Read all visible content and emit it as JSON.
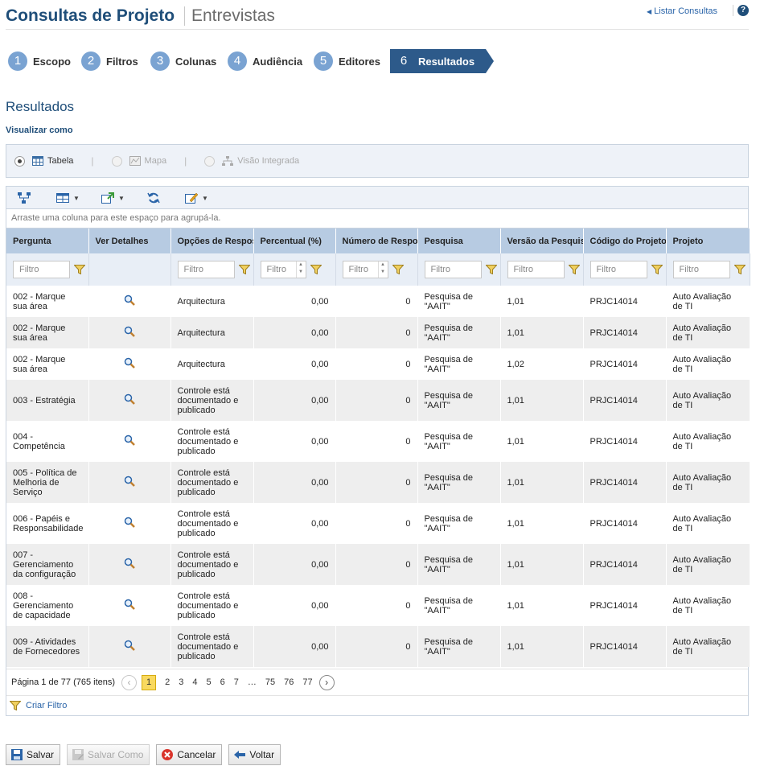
{
  "header": {
    "title": "Consultas de Projeto",
    "subtitle": "Entrevistas",
    "list_link": "Listar Consultas",
    "help": "?"
  },
  "wizard": {
    "steps": [
      {
        "num": "1",
        "label": "Escopo"
      },
      {
        "num": "2",
        "label": "Filtros"
      },
      {
        "num": "3",
        "label": "Colunas"
      },
      {
        "num": "4",
        "label": "Audiência"
      },
      {
        "num": "5",
        "label": "Editores"
      },
      {
        "num": "6",
        "label": "Resultados",
        "active": true
      }
    ]
  },
  "section_title": "Resultados",
  "view_as": {
    "label": "Visualizar como",
    "options": [
      "Tabela",
      "Mapa",
      "Visão Integrada"
    ],
    "selected": "Tabela"
  },
  "grid": {
    "group_hint": "Arraste uma coluna para este espaço para agrupá-la.",
    "columns": [
      "Pergunta",
      "Ver Detalhes",
      "Opções de Respostas",
      "Percentual (%)",
      "Número de Respostas",
      "Pesquisa",
      "Versão da Pesquisa",
      "Código do Projeto",
      "Projeto"
    ],
    "filter_placeholder": "Filtro",
    "rows": [
      {
        "pergunta": "002 - Marque sua área",
        "opcao": "Arquitectura",
        "percentual": "0,00",
        "numero": "0",
        "pesquisa": "Pesquisa de \"AAIT\"",
        "versao": "1,01",
        "codigo": "PRJC14014",
        "projeto": "Auto Avaliação de TI"
      },
      {
        "pergunta": "002 - Marque sua área",
        "opcao": "Arquitectura",
        "percentual": "0,00",
        "numero": "0",
        "pesquisa": "Pesquisa de \"AAIT\"",
        "versao": "1,01",
        "codigo": "PRJC14014",
        "projeto": "Auto Avaliação de TI"
      },
      {
        "pergunta": "002 - Marque sua área",
        "opcao": "Arquitectura",
        "percentual": "0,00",
        "numero": "0",
        "pesquisa": "Pesquisa de \"AAIT\"",
        "versao": "1,02",
        "codigo": "PRJC14014",
        "projeto": "Auto Avaliação de TI"
      },
      {
        "pergunta": "003 - Estratégia",
        "opcao": "Controle está documentado e publicado",
        "percentual": "0,00",
        "numero": "0",
        "pesquisa": "Pesquisa de \"AAIT\"",
        "versao": "1,01",
        "codigo": "PRJC14014",
        "projeto": "Auto Avaliação de TI"
      },
      {
        "pergunta": "004 - Competência",
        "opcao": "Controle está documentado e publicado",
        "percentual": "0,00",
        "numero": "0",
        "pesquisa": "Pesquisa de \"AAIT\"",
        "versao": "1,01",
        "codigo": "PRJC14014",
        "projeto": "Auto Avaliação de TI"
      },
      {
        "pergunta": "005 - Política de Melhoria de Serviço",
        "opcao": "Controle está documentado e publicado",
        "percentual": "0,00",
        "numero": "0",
        "pesquisa": "Pesquisa de \"AAIT\"",
        "versao": "1,01",
        "codigo": "PRJC14014",
        "projeto": "Auto Avaliação de TI"
      },
      {
        "pergunta": "006 - Papéis e Responsabilidade",
        "opcao": "Controle está documentado e publicado",
        "percentual": "0,00",
        "numero": "0",
        "pesquisa": "Pesquisa de \"AAIT\"",
        "versao": "1,01",
        "codigo": "PRJC14014",
        "projeto": "Auto Avaliação de TI"
      },
      {
        "pergunta": "007 - Gerenciamento da configuração",
        "opcao": "Controle está documentado e publicado",
        "percentual": "0,00",
        "numero": "0",
        "pesquisa": "Pesquisa de \"AAIT\"",
        "versao": "1,01",
        "codigo": "PRJC14014",
        "projeto": "Auto Avaliação de TI"
      },
      {
        "pergunta": "008 - Gerenciamento de capacidade",
        "opcao": "Controle está documentado e publicado",
        "percentual": "0,00",
        "numero": "0",
        "pesquisa": "Pesquisa de \"AAIT\"",
        "versao": "1,01",
        "codigo": "PRJC14014",
        "projeto": "Auto Avaliação de TI"
      },
      {
        "pergunta": "009 - Atividades de Fornecedores",
        "opcao": "Controle está documentado e publicado",
        "percentual": "0,00",
        "numero": "0",
        "pesquisa": "Pesquisa de \"AAIT\"",
        "versao": "1,01",
        "codigo": "PRJC14014",
        "projeto": "Auto Avaliação de TI"
      }
    ]
  },
  "pager": {
    "info": "Página 1 de 77 (765 itens)",
    "pages": [
      "1",
      "2",
      "3",
      "4",
      "5",
      "6",
      "7",
      "…",
      "75",
      "76",
      "77"
    ],
    "current": "1"
  },
  "create_filter": "Criar Filtro",
  "footer": {
    "save": "Salvar",
    "save_as": "Salvar Como",
    "cancel": "Cancelar",
    "back": "Voltar"
  },
  "colors": {
    "primary": "#1f4e79",
    "step_circle": "#7aa3d2",
    "step_active": "#2d5a8a",
    "header_row": "#b7cbe2",
    "link": "#2a64a8"
  }
}
